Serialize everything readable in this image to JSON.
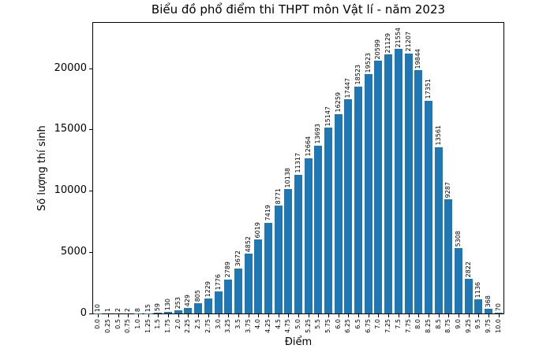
{
  "chart_data": {
    "type": "bar",
    "title": "Biểu đồ phổ điểm thi THPT môn Vật lí - năm 2023",
    "xlabel": "Điểm",
    "ylabel": "Số lượng thí sinh",
    "categories": [
      "0.0",
      "0.25",
      "0.5",
      "0.75",
      "1.0",
      "1.25",
      "1.5",
      "1.75",
      "2.0",
      "2.25",
      "2.5",
      "2.75",
      "3.0",
      "3.25",
      "3.5",
      "3.75",
      "4.0",
      "4.25",
      "4.5",
      "4.75",
      "5.0",
      "5.25",
      "5.5",
      "5.75",
      "6.0",
      "6.25",
      "6.5",
      "6.75",
      "7.0",
      "7.25",
      "7.5",
      "7.75",
      "8.0",
      "8.25",
      "8.5",
      "8.75",
      "9.0",
      "9.25",
      "9.5",
      "9.75",
      "10.0"
    ],
    "values": [
      10,
      1,
      2,
      2,
      8,
      15,
      59,
      130,
      253,
      429,
      805,
      1229,
      1776,
      2789,
      3672,
      4852,
      6019,
      7419,
      8771,
      10138,
      11317,
      12664,
      13693,
      15147,
      16259,
      17447,
      18523,
      19523,
      20599,
      21129,
      21554,
      21207,
      19844,
      17351,
      13561,
      9287,
      5308,
      2822,
      1136,
      368,
      70
    ],
    "bar_value_labels_shown": true,
    "yticks": [
      0,
      5000,
      10000,
      15000,
      20000
    ],
    "ytick_labels": [
      "0",
      "5000",
      "10000",
      "15000",
      "20000"
    ],
    "ylim": [
      0,
      23700
    ],
    "grid": false,
    "legend": "none",
    "bar_color": "#1f77b4",
    "text_color": "#000000"
  }
}
